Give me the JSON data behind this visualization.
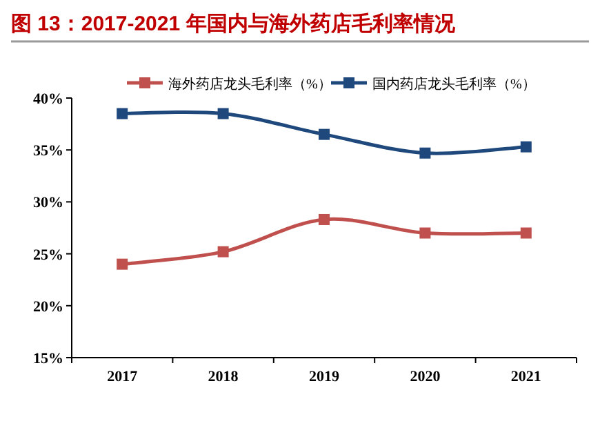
{
  "chart_data": {
    "type": "line",
    "title": "图 13：2017-2021 年国内与海外药店毛利率情况",
    "categories": [
      "2017",
      "2018",
      "2019",
      "2020",
      "2021"
    ],
    "series": [
      {
        "name": "海外药店龙头毛利率（%）",
        "color": "#c0504d",
        "values": [
          24.0,
          25.2,
          28.3,
          27.0,
          27.0
        ]
      },
      {
        "name": "国内药店龙头毛利率（%）",
        "color": "#1f497d",
        "values": [
          38.5,
          38.5,
          36.5,
          34.7,
          35.3
        ]
      }
    ],
    "ylim": [
      15,
      40
    ],
    "yticks": [
      {
        "value": 15,
        "label": "15%"
      },
      {
        "value": 20,
        "label": "20%"
      },
      {
        "value": 25,
        "label": "25%"
      },
      {
        "value": 30,
        "label": "30%"
      },
      {
        "value": 35,
        "label": "35%"
      },
      {
        "value": 40,
        "label": "40%"
      }
    ],
    "marker": "square",
    "line_style": "solid",
    "legend": "top",
    "grid": false
  }
}
